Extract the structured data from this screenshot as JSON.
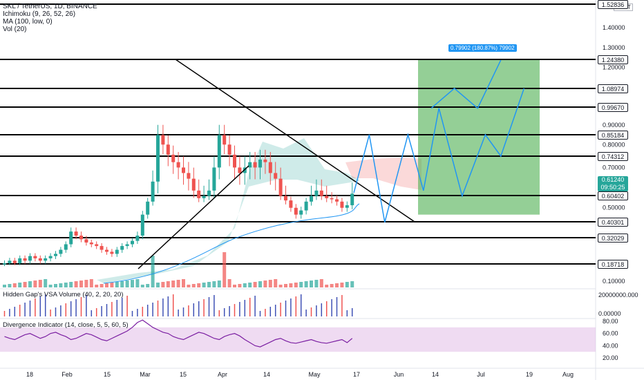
{
  "header": {
    "symbol_line": "SKL / TetherUS, 1D, BINANCE",
    "indicators": [
      "Ichimoku (9, 26, 52, 26)",
      "MA (100, low, 0)",
      "Vol (20)"
    ],
    "currency": "USDT"
  },
  "panes": {
    "vsa_label": "Hidden Gap's VSA Volume (40, 2, 20, 20)",
    "div_label": "Divergence Indicator (14, close, 5, 5, 60, 5)",
    "vsa_axis": [
      "20000000.000",
      "0.00000"
    ],
    "div_axis": [
      "80.00",
      "60.00",
      "40.00",
      "20.00"
    ]
  },
  "price_axis_ticks": [
    "1.40000",
    "1.30000",
    "1.20000",
    "0.90000",
    "0.80000",
    "0.70000",
    "0.50000",
    "0.10000"
  ],
  "levels": [
    "1.52836",
    "1.24380",
    "1.08974",
    "0.99670",
    "0.85184",
    "0.74312",
    "0.60402",
    "0.40301",
    "0.32029",
    "0.18718"
  ],
  "current_price": {
    "price": "0.61240",
    "countdown": "09:50:25"
  },
  "target": {
    "label": "0.79902 (180.87%) 79902"
  },
  "x_axis_ticks": [
    "18",
    "Feb",
    "15",
    "Mar",
    "15",
    "Apr",
    "14",
    "May",
    "17",
    "Jun",
    "14",
    "Jul",
    "19",
    "Aug"
  ],
  "colors": {
    "up": "#26a69a",
    "down": "#ef5350",
    "projection": "#2196f3",
    "target_zone": "#4caf50",
    "rsi": "#7b1fa2"
  },
  "chart_data": {
    "type": "candlestick",
    "title": "SKL / TetherUS, 1D, BINANCE",
    "price_range": [
      0.1,
      1.53
    ],
    "horizontal_levels": [
      1.52836,
      1.2438,
      1.08974,
      0.9967,
      0.85184,
      0.74312,
      0.60402,
      0.40301,
      0.32029,
      0.18718
    ],
    "current_price": 0.6124,
    "close_series_approx": [
      0.19,
      0.2,
      0.19,
      0.21,
      0.2,
      0.22,
      0.21,
      0.2,
      0.21,
      0.22,
      0.23,
      0.25,
      0.28,
      0.35,
      0.33,
      0.31,
      0.29,
      0.28,
      0.27,
      0.25,
      0.24,
      0.23,
      0.25,
      0.27,
      0.28,
      0.3,
      0.33,
      0.45,
      0.55,
      0.65,
      0.85,
      0.8,
      0.75,
      0.72,
      0.7,
      0.68,
      0.66,
      0.62,
      0.58,
      0.6,
      0.62,
      0.7,
      0.85,
      0.8,
      0.75,
      0.7,
      0.68,
      0.7,
      0.72,
      0.7,
      0.73,
      0.72,
      0.68,
      0.66,
      0.6,
      0.56,
      0.5,
      0.45,
      0.48,
      0.55,
      0.6,
      0.62,
      0.6,
      0.58,
      0.57,
      0.55,
      0.5,
      0.52,
      0.61
    ],
    "projection_paths": [
      [
        [
          0,
          0.6124
        ],
        [
          4,
          0.85184
        ],
        [
          8,
          0.4
        ],
        [
          14,
          0.85184
        ],
        [
          18,
          0.62
        ],
        [
          22,
          0.99
        ]
      ],
      [
        [
          20,
          0.99
        ],
        [
          26,
          1.09
        ],
        [
          32,
          0.99
        ],
        [
          38,
          1.24
        ]
      ],
      [
        [
          22,
          0.99
        ],
        [
          28,
          0.6
        ],
        [
          34,
          0.85184
        ],
        [
          38,
          0.74312
        ],
        [
          44,
          1.09
        ]
      ]
    ],
    "rsi_range": [
      20,
      80
    ],
    "rsi_series_approx": [
      55,
      52,
      50,
      54,
      58,
      60,
      56,
      52,
      55,
      60,
      62,
      58,
      55,
      50,
      52,
      56,
      60,
      58,
      54,
      50,
      48,
      52,
      56,
      60,
      64,
      70,
      78,
      82,
      76,
      70,
      66,
      62,
      60,
      55,
      52,
      50,
      54,
      58,
      62,
      60,
      56,
      52,
      50,
      55,
      58,
      60,
      56,
      50,
      45,
      40,
      38,
      42,
      46,
      50,
      52,
      48,
      45,
      44,
      46,
      48,
      50,
      47,
      45,
      44,
      46,
      48,
      50,
      45,
      52
    ]
  }
}
